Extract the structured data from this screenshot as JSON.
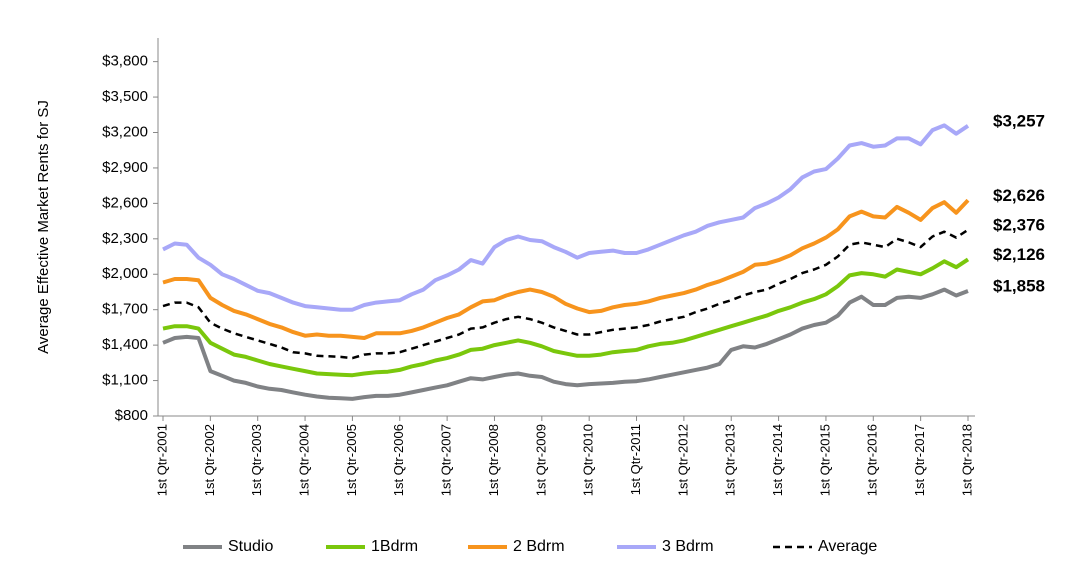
{
  "chart_data": {
    "type": "line",
    "y_label": "Average Effective Market Rents for SJ",
    "categories": [
      "1st Qtr-2001",
      null,
      null,
      null,
      "1st Qtr-2002",
      null,
      null,
      null,
      "1st Qtr-2003",
      null,
      null,
      null,
      "1st Qtr-2004",
      null,
      null,
      null,
      "1st Qtr-2005",
      null,
      null,
      null,
      "1st Qtr-2006",
      null,
      null,
      null,
      "1st Qtr-2007",
      null,
      null,
      null,
      "1st Qtr-2008",
      null,
      null,
      null,
      "1st Qtr-2009",
      null,
      null,
      null,
      "1st Qtr-2010",
      null,
      null,
      null,
      "1st Qtr-2011",
      null,
      null,
      null,
      "1st Qtr-2012",
      null,
      null,
      null,
      "1st Qtr-2013",
      null,
      null,
      null,
      "1st Qtr-2014",
      null,
      null,
      null,
      "1st Qtr-2015",
      null,
      null,
      null,
      "1st Qtr-2016",
      null,
      null,
      null,
      "1st Qtr-2017",
      null,
      null,
      null,
      "1st Qtr-2018"
    ],
    "ylim": [
      800,
      4000
    ],
    "yticks": [
      {
        "value": 800,
        "label": "$800"
      },
      {
        "value": 1100,
        "label": "$1,100"
      },
      {
        "value": 1400,
        "label": "$1,400"
      },
      {
        "value": 1700,
        "label": "$1,700"
      },
      {
        "value": 2000,
        "label": "$2,000"
      },
      {
        "value": 2300,
        "label": "$2,300"
      },
      {
        "value": 2600,
        "label": "$2,600"
      },
      {
        "value": 2900,
        "label": "$2,900"
      },
      {
        "value": 3200,
        "label": "$3,200"
      },
      {
        "value": 3500,
        "label": "$3,500"
      },
      {
        "value": 3800,
        "label": "$3,800"
      }
    ],
    "legend": "bottom",
    "series": [
      {
        "name": "Studio",
        "color": "#808285",
        "dashed": false,
        "values": [
          1420,
          1460,
          1470,
          1460,
          1180,
          1140,
          1100,
          1080,
          1050,
          1030,
          1020,
          1000,
          980,
          965,
          955,
          950,
          945,
          960,
          970,
          970,
          980,
          1000,
          1020,
          1040,
          1060,
          1090,
          1120,
          1110,
          1130,
          1150,
          1160,
          1140,
          1130,
          1090,
          1070,
          1060,
          1070,
          1075,
          1080,
          1090,
          1095,
          1110,
          1130,
          1150,
          1170,
          1190,
          1210,
          1240,
          1360,
          1390,
          1380,
          1410,
          1450,
          1490,
          1540,
          1570,
          1590,
          1650,
          1760,
          1810,
          1740,
          1740,
          1800,
          1810,
          1800,
          1830,
          1870,
          1820,
          1858
        ],
        "value_labels": [
          null,
          null,
          null,
          null,
          null,
          null,
          null,
          null,
          null,
          null,
          null,
          null,
          null,
          null,
          null,
          null,
          null,
          null,
          null,
          null,
          null,
          null,
          null,
          null,
          null,
          null,
          null,
          null,
          null,
          null,
          null,
          null,
          null,
          null,
          null,
          null,
          null,
          null,
          null,
          null,
          null,
          null,
          null,
          null,
          null,
          null,
          null,
          null,
          null,
          null,
          null,
          null,
          null,
          null,
          null,
          null,
          null,
          null,
          null,
          null,
          null,
          null,
          null,
          null,
          null,
          null,
          null,
          null,
          "$1,858"
        ]
      },
      {
        "name": "1Bdrm",
        "color": "#7ac70c",
        "dashed": false,
        "values": [
          1540,
          1560,
          1560,
          1540,
          1420,
          1370,
          1320,
          1300,
          1270,
          1240,
          1220,
          1200,
          1180,
          1160,
          1155,
          1150,
          1145,
          1160,
          1170,
          1175,
          1190,
          1220,
          1240,
          1270,
          1290,
          1320,
          1360,
          1370,
          1400,
          1420,
          1440,
          1420,
          1390,
          1350,
          1330,
          1310,
          1310,
          1320,
          1340,
          1350,
          1360,
          1390,
          1410,
          1420,
          1440,
          1470,
          1500,
          1530,
          1560,
          1590,
          1620,
          1650,
          1690,
          1720,
          1760,
          1790,
          1830,
          1900,
          1990,
          2010,
          2000,
          1980,
          2040,
          2020,
          2000,
          2050,
          2110,
          2060,
          2126
        ],
        "value_labels": [
          null,
          null,
          null,
          null,
          null,
          null,
          null,
          null,
          null,
          null,
          null,
          null,
          null,
          null,
          null,
          null,
          null,
          null,
          null,
          null,
          null,
          null,
          null,
          null,
          null,
          null,
          null,
          null,
          null,
          null,
          null,
          null,
          null,
          null,
          null,
          null,
          null,
          null,
          null,
          null,
          null,
          null,
          null,
          null,
          null,
          null,
          null,
          null,
          null,
          null,
          null,
          null,
          null,
          null,
          null,
          null,
          null,
          null,
          null,
          null,
          null,
          null,
          null,
          null,
          null,
          null,
          null,
          null,
          "$2,126"
        ]
      },
      {
        "name": "2 Bdrm",
        "color": "#f7941d",
        "dashed": false,
        "values": [
          1930,
          1960,
          1960,
          1950,
          1800,
          1740,
          1690,
          1660,
          1620,
          1580,
          1550,
          1510,
          1480,
          1490,
          1480,
          1480,
          1470,
          1460,
          1500,
          1500,
          1500,
          1520,
          1550,
          1590,
          1630,
          1660,
          1720,
          1770,
          1780,
          1820,
          1850,
          1870,
          1850,
          1810,
          1750,
          1710,
          1680,
          1690,
          1720,
          1740,
          1750,
          1770,
          1800,
          1820,
          1840,
          1870,
          1910,
          1940,
          1980,
          2020,
          2080,
          2090,
          2120,
          2160,
          2220,
          2260,
          2310,
          2380,
          2490,
          2530,
          2490,
          2480,
          2570,
          2520,
          2460,
          2560,
          2610,
          2520,
          2626
        ],
        "value_labels": [
          null,
          null,
          null,
          null,
          null,
          null,
          null,
          null,
          null,
          null,
          null,
          null,
          null,
          null,
          null,
          null,
          null,
          null,
          null,
          null,
          null,
          null,
          null,
          null,
          null,
          null,
          null,
          null,
          null,
          null,
          null,
          null,
          null,
          null,
          null,
          null,
          null,
          null,
          null,
          null,
          null,
          null,
          null,
          null,
          null,
          null,
          null,
          null,
          null,
          null,
          null,
          null,
          null,
          null,
          null,
          null,
          null,
          null,
          null,
          null,
          null,
          null,
          null,
          null,
          null,
          null,
          null,
          null,
          "$2,626"
        ]
      },
      {
        "name": "3 Bdrm",
        "color": "#a8a8f8",
        "dashed": false,
        "values": [
          2210,
          2260,
          2250,
          2140,
          2080,
          2000,
          1960,
          1910,
          1860,
          1840,
          1800,
          1760,
          1730,
          1720,
          1710,
          1700,
          1700,
          1740,
          1760,
          1770,
          1780,
          1830,
          1870,
          1950,
          1990,
          2040,
          2120,
          2090,
          2230,
          2290,
          2320,
          2290,
          2280,
          2230,
          2190,
          2140,
          2180,
          2190,
          2200,
          2180,
          2180,
          2210,
          2250,
          2290,
          2330,
          2360,
          2410,
          2440,
          2460,
          2480,
          2560,
          2600,
          2650,
          2720,
          2820,
          2870,
          2890,
          2980,
          3090,
          3110,
          3080,
          3090,
          3150,
          3150,
          3100,
          3220,
          3260,
          3190,
          3257
        ],
        "value_labels": [
          null,
          null,
          null,
          null,
          null,
          null,
          null,
          null,
          null,
          null,
          null,
          null,
          null,
          null,
          null,
          null,
          null,
          null,
          null,
          null,
          null,
          null,
          null,
          null,
          null,
          null,
          null,
          null,
          null,
          null,
          null,
          null,
          null,
          null,
          null,
          null,
          null,
          null,
          null,
          null,
          null,
          null,
          null,
          null,
          null,
          null,
          null,
          null,
          null,
          null,
          null,
          null,
          null,
          null,
          null,
          null,
          null,
          null,
          null,
          null,
          null,
          null,
          null,
          null,
          null,
          null,
          null,
          null,
          "$3,257"
        ]
      },
      {
        "name": "Average",
        "color": "#000000",
        "dashed": true,
        "values": [
          1730,
          1760,
          1760,
          1720,
          1590,
          1540,
          1500,
          1470,
          1440,
          1410,
          1380,
          1340,
          1330,
          1310,
          1305,
          1300,
          1290,
          1320,
          1330,
          1330,
          1340,
          1370,
          1400,
          1430,
          1460,
          1490,
          1540,
          1550,
          1590,
          1620,
          1640,
          1620,
          1590,
          1550,
          1520,
          1490,
          1490,
          1510,
          1530,
          1540,
          1550,
          1570,
          1600,
          1620,
          1640,
          1680,
          1710,
          1750,
          1780,
          1820,
          1850,
          1870,
          1920,
          1960,
          2010,
          2040,
          2080,
          2150,
          2250,
          2270,
          2250,
          2230,
          2300,
          2270,
          2230,
          2320,
          2360,
          2310,
          2376
        ],
        "value_labels": [
          null,
          null,
          null,
          null,
          null,
          null,
          null,
          null,
          null,
          null,
          null,
          null,
          null,
          null,
          null,
          null,
          null,
          null,
          null,
          null,
          null,
          null,
          null,
          null,
          null,
          null,
          null,
          null,
          null,
          null,
          null,
          null,
          null,
          null,
          null,
          null,
          null,
          null,
          null,
          null,
          null,
          null,
          null,
          null,
          null,
          null,
          null,
          null,
          null,
          null,
          null,
          null,
          null,
          null,
          null,
          null,
          null,
          null,
          null,
          null,
          null,
          null,
          null,
          null,
          null,
          null,
          null,
          null,
          "$2,376"
        ]
      }
    ]
  }
}
